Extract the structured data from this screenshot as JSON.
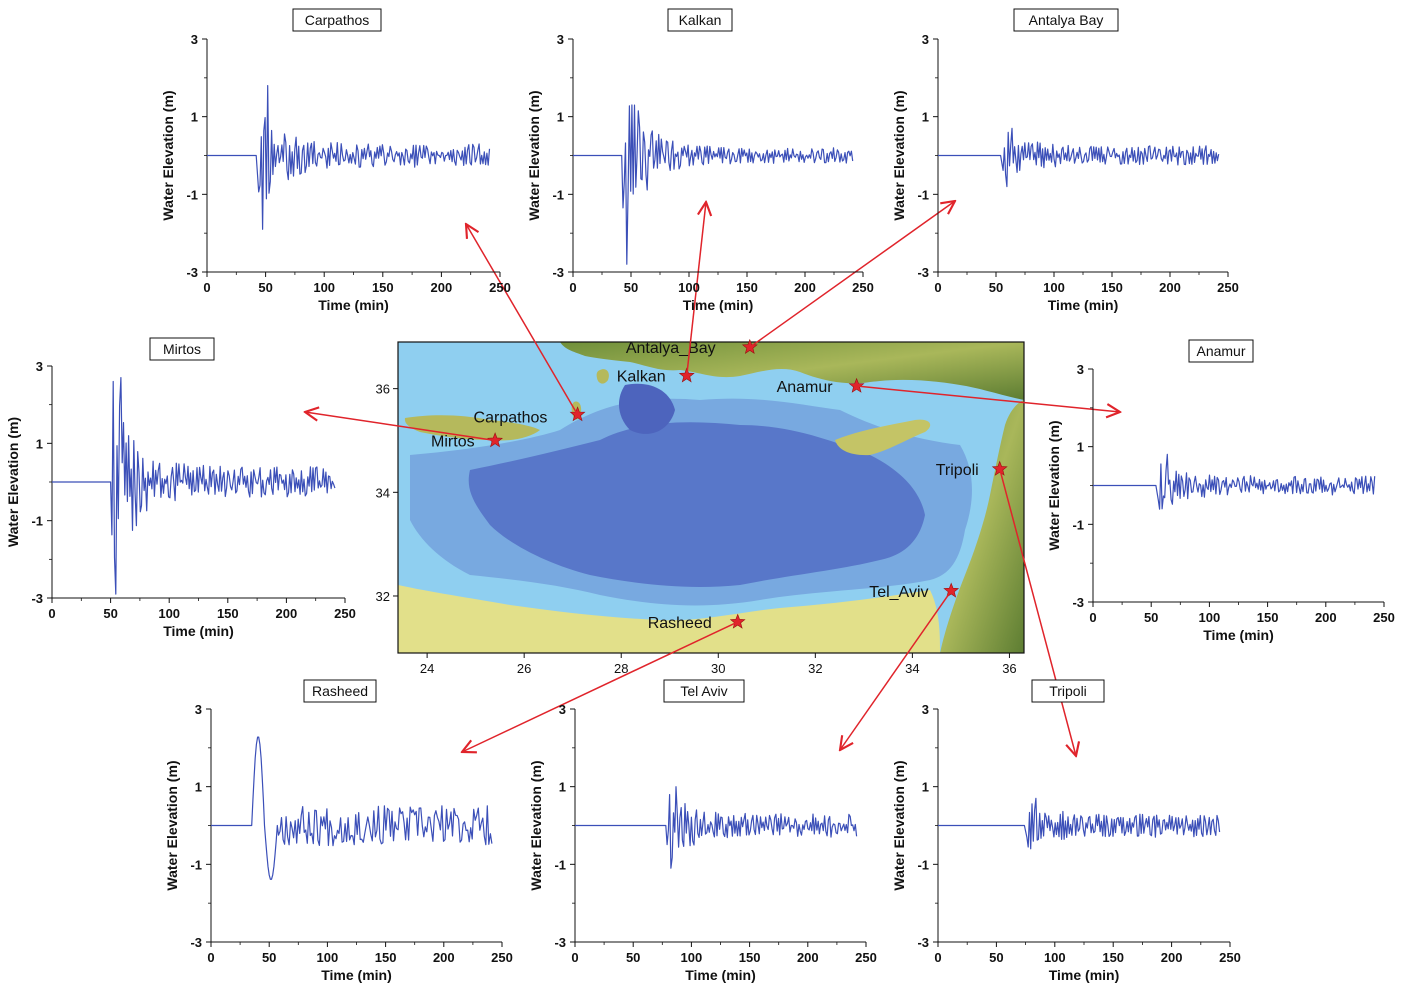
{
  "colors": {
    "line": "#3b4fb8",
    "arrow": "#e0242b",
    "star": "#e0242b"
  },
  "axis_text": {
    "ylabel": "Water Elevation (m)",
    "xlabel": "Time (min)"
  },
  "map": {
    "x_ticks": [
      "24",
      "26",
      "28",
      "30",
      "32",
      "34",
      "36"
    ],
    "y_ticks": [
      "32",
      "34",
      "36"
    ],
    "xlim": [
      23.4,
      36.3
    ],
    "ylim": [
      30.9,
      36.9
    ],
    "stations": [
      {
        "name": "Antalya_Bay",
        "lon": 30.65,
        "lat": 36.8
      },
      {
        "name": "Kalkan",
        "lon": 29.35,
        "lat": 36.25
      },
      {
        "name": "Anamur",
        "lon": 32.85,
        "lat": 36.05
      },
      {
        "name": "Carpathos",
        "lon": 27.1,
        "lat": 35.5
      },
      {
        "name": "Mirtos",
        "lon": 25.4,
        "lat": 35.0
      },
      {
        "name": "Tripoli",
        "lon": 35.8,
        "lat": 34.45
      },
      {
        "name": "Tel_Aviv",
        "lon": 34.8,
        "lat": 32.1
      },
      {
        "name": "Rasheed",
        "lon": 30.4,
        "lat": 31.5
      }
    ]
  },
  "chart_data": [
    {
      "type": "line",
      "title": "Carpathos",
      "xlabel": "Time (min)",
      "ylabel": "Water Elevation (m)",
      "xlim": [
        0,
        250
      ],
      "ylim": [
        -3,
        3
      ],
      "x_ticks": [
        0,
        50,
        100,
        150,
        200,
        250
      ],
      "y_ticks": [
        3,
        1,
        -1,
        -3
      ],
      "arrival_min": 43,
      "end_min": 242,
      "max_m": 1.8,
      "min_m": -1.9,
      "late_amplitude_m": 0.3
    },
    {
      "type": "line",
      "title": "Kalkan",
      "xlabel": "Time (min)",
      "ylabel": "Water Elevation (m)",
      "xlim": [
        0,
        250
      ],
      "ylim": [
        -3,
        3
      ],
      "x_ticks": [
        0,
        50,
        100,
        150,
        200,
        250
      ],
      "y_ticks": [
        3,
        1,
        -1,
        -3
      ],
      "arrival_min": 42,
      "end_min": 242,
      "max_m": 1.3,
      "min_m": -2.8,
      "late_amplitude_m": 0.2
    },
    {
      "type": "line",
      "title": "Antalya Bay",
      "xlabel": "Time (min)",
      "ylabel": "Water Elevation (m)",
      "xlim": [
        0,
        250
      ],
      "ylim": [
        -3,
        3
      ],
      "x_ticks": [
        0,
        50,
        100,
        150,
        200,
        250
      ],
      "y_ticks": [
        3,
        1,
        -1,
        -3
      ],
      "arrival_min": 55,
      "end_min": 242,
      "max_m": 0.7,
      "min_m": -0.8,
      "late_amplitude_m": 0.25
    },
    {
      "type": "line",
      "title": "Mirtos",
      "xlabel": "Time (min)",
      "ylabel": "Water Elevation (m)",
      "xlim": [
        0,
        250
      ],
      "ylim": [
        -3,
        3
      ],
      "x_ticks": [
        0,
        50,
        100,
        150,
        200,
        250
      ],
      "y_ticks": [
        3,
        1,
        -1,
        -3
      ],
      "arrival_min": 50,
      "end_min": 242,
      "max_m": 2.7,
      "min_m": -2.9,
      "late_amplitude_m": 0.4
    },
    {
      "type": "line",
      "title": "Anamur",
      "xlabel": "Time (min)",
      "ylabel": "Water Elevation (m)",
      "xlim": [
        0,
        250
      ],
      "ylim": [
        -3,
        3
      ],
      "x_ticks": [
        0,
        50,
        100,
        150,
        200,
        250
      ],
      "y_ticks": [
        3,
        1,
        -1,
        -3
      ],
      "arrival_min": 55,
      "end_min": 242,
      "max_m": 0.8,
      "min_m": -0.6,
      "late_amplitude_m": 0.25
    },
    {
      "type": "line",
      "title": "Rasheed",
      "xlabel": "Time (min)",
      "ylabel": "Water Elevation (m)",
      "xlim": [
        0,
        250
      ],
      "ylim": [
        -3,
        3
      ],
      "x_ticks": [
        0,
        50,
        100,
        150,
        200,
        250
      ],
      "y_ticks": [
        3,
        1,
        -1,
        -3
      ],
      "arrival_min": 35,
      "end_min": 242,
      "max_m": 2.3,
      "min_m": -1.4,
      "late_amplitude_m": 0.4
    },
    {
      "type": "line",
      "title": "Tel Aviv",
      "xlabel": "Time (min)",
      "ylabel": "Water Elevation (m)",
      "xlim": [
        0,
        250
      ],
      "ylim": [
        -3,
        3
      ],
      "x_ticks": [
        0,
        50,
        100,
        150,
        200,
        250
      ],
      "y_ticks": [
        3,
        1,
        -1,
        -3
      ],
      "arrival_min": 78,
      "end_min": 242,
      "max_m": 1.0,
      "min_m": -1.1,
      "late_amplitude_m": 0.3
    },
    {
      "type": "line",
      "title": "Tripoli",
      "xlabel": "Time (min)",
      "ylabel": "Water Elevation (m)",
      "xlim": [
        0,
        250
      ],
      "ylim": [
        -3,
        3
      ],
      "x_ticks": [
        0,
        50,
        100,
        150,
        200,
        250
      ],
      "y_ticks": [
        3,
        1,
        -1,
        -3
      ],
      "arrival_min": 75,
      "end_min": 242,
      "max_m": 0.7,
      "min_m": -0.6,
      "late_amplitude_m": 0.3
    }
  ]
}
